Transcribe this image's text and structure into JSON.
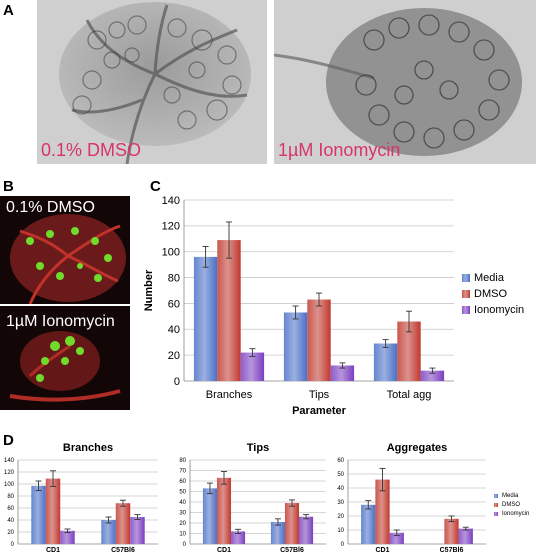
{
  "panel_a": {
    "letter": "A",
    "left_label": "0.1% DMSO",
    "right_label": "1µM Ionomycin",
    "label_color": "#d8336b"
  },
  "panel_b": {
    "letter": "B",
    "top_label": "0.1% DMSO",
    "bottom_label": "1µM Ionomycin"
  },
  "panel_c": {
    "letter": "C"
  },
  "panel_d": {
    "letter": "D"
  },
  "colors": {
    "Media": "#4a6fc6",
    "DMSO": "#c0392f",
    "Ionomycin": "#7a3fc0"
  },
  "chart_data": [
    {
      "id": "C",
      "type": "bar",
      "title": "",
      "xlabel": "Parameter",
      "ylabel": "Number",
      "categories": [
        "Branches",
        "Tips",
        "Total agg"
      ],
      "ylim": [
        0,
        140
      ],
      "yticks": [
        "0",
        "20",
        "40",
        "60",
        "80",
        "100",
        "120",
        "140"
      ],
      "grid": true,
      "legend": "right",
      "series": [
        {
          "name": "Media",
          "values": [
            96,
            53,
            29
          ],
          "errors": [
            8,
            5,
            3
          ]
        },
        {
          "name": "DMSO",
          "values": [
            109,
            63,
            46
          ],
          "errors": [
            14,
            5,
            8
          ]
        },
        {
          "name": "Ionomycin",
          "values": [
            22,
            12,
            8
          ],
          "errors": [
            3,
            2,
            2
          ]
        }
      ]
    },
    {
      "id": "D1",
      "type": "bar",
      "title": "Branches",
      "categories": [
        "CD1",
        "C57Bl6"
      ],
      "ylim": [
        0,
        140
      ],
      "yticks": [
        "0",
        "20",
        "40",
        "60",
        "80",
        "100",
        "120",
        "140"
      ],
      "grid": true,
      "series": [
        {
          "name": "Media",
          "values": [
            97,
            40
          ],
          "errors": [
            8,
            5
          ]
        },
        {
          "name": "DMSO",
          "values": [
            109,
            68
          ],
          "errors": [
            13,
            5
          ]
        },
        {
          "name": "Ionomycin",
          "values": [
            22,
            45
          ],
          "errors": [
            3,
            4
          ]
        }
      ]
    },
    {
      "id": "D2",
      "type": "bar",
      "title": "Tips",
      "categories": [
        "CD1",
        "C57Bl6"
      ],
      "ylim": [
        0,
        80
      ],
      "yticks": [
        "0",
        "10",
        "20",
        "30",
        "40",
        "50",
        "60",
        "70",
        "80"
      ],
      "grid": true,
      "series": [
        {
          "name": "Media",
          "values": [
            53,
            21
          ],
          "errors": [
            5,
            3
          ]
        },
        {
          "name": "DMSO",
          "values": [
            63,
            39
          ],
          "errors": [
            6,
            3
          ]
        },
        {
          "name": "Ionomycin",
          "values": [
            12,
            26
          ],
          "errors": [
            2,
            2
          ]
        }
      ]
    },
    {
      "id": "D3",
      "type": "bar",
      "title": "Aggregates",
      "categories": [
        "CD1",
        "C57Bl6"
      ],
      "ylim": [
        0,
        60
      ],
      "yticks": [
        "0",
        "10",
        "20",
        "30",
        "40",
        "50",
        "60"
      ],
      "grid": true,
      "legend": "right",
      "series": [
        {
          "name": "Media",
          "values": [
            28,
            0
          ],
          "errors": [
            3,
            0
          ]
        },
        {
          "name": "DMSO",
          "values": [
            46,
            18
          ],
          "errors": [
            8,
            2
          ]
        },
        {
          "name": "Ionomycin",
          "values": [
            8,
            11
          ],
          "errors": [
            2,
            1
          ]
        }
      ]
    }
  ]
}
